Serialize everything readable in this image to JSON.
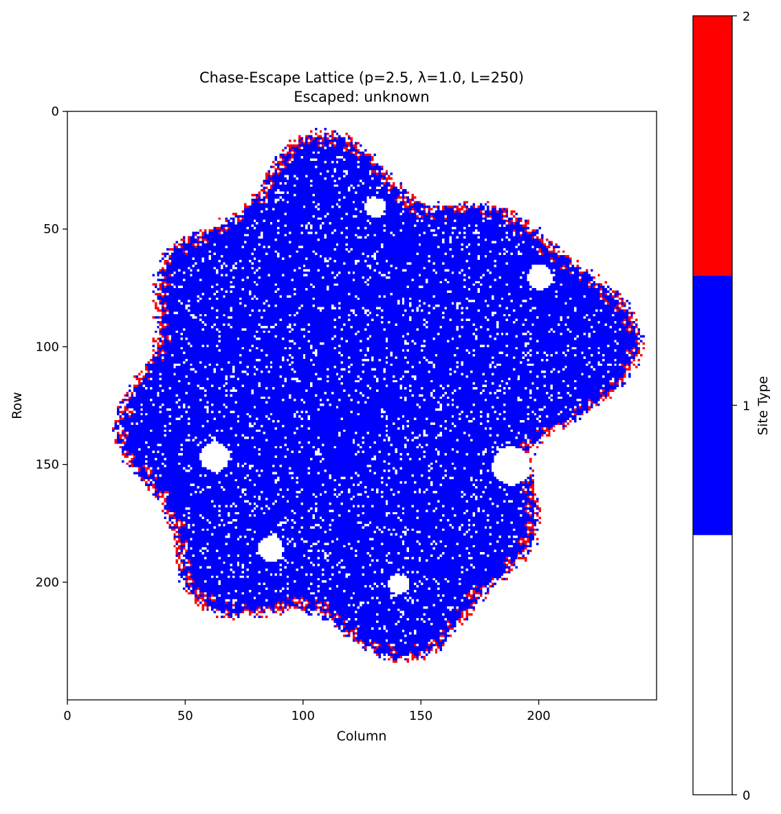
{
  "chart_data": {
    "type": "heatmap",
    "title": "Chase-Escape Lattice (p=2.5, λ=1.0, L=250)",
    "subtitle": "Escaped: unknown",
    "xlabel": "Column",
    "ylabel": "Row",
    "xlim": [
      0,
      250
    ],
    "ylim": [
      250,
      0
    ],
    "x_ticks": [
      0,
      50,
      100,
      150,
      200
    ],
    "y_ticks": [
      0,
      50,
      100,
      150,
      200
    ],
    "grid": false,
    "lattice_size": 250,
    "cluster_center": [
      124,
      121
    ],
    "cluster_radius": 100,
    "colorbar": {
      "label": "Site Type",
      "ticks": [
        0,
        1,
        2
      ],
      "range": [
        0,
        2
      ],
      "levels": [
        {
          "value": 0,
          "color": "#ffffff"
        },
        {
          "value": 1,
          "color": "#0000ff"
        },
        {
          "value": 2,
          "color": "#ff0000"
        }
      ]
    }
  }
}
